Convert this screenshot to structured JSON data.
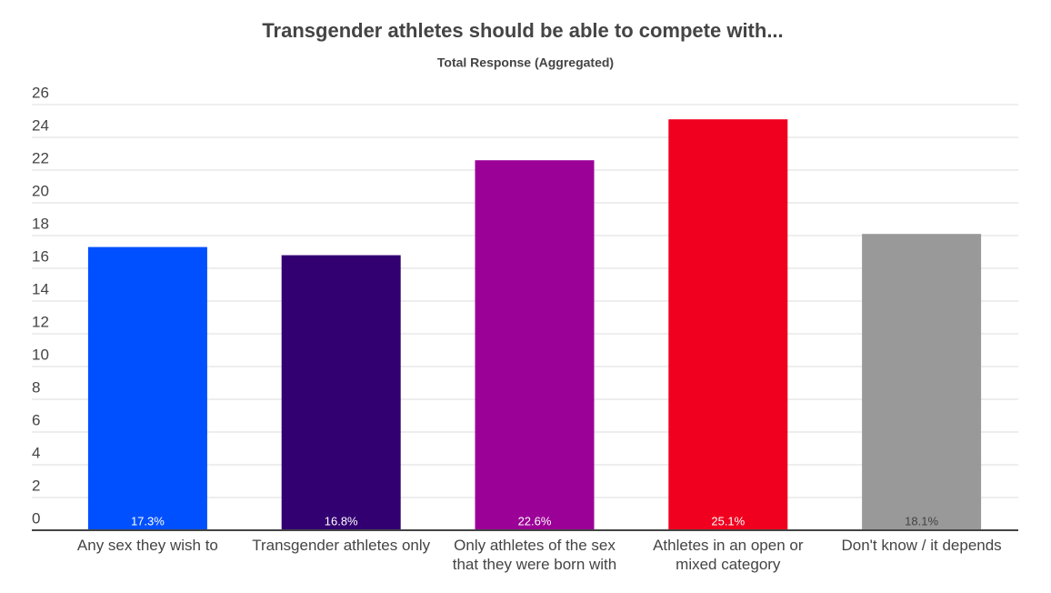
{
  "chart_data": {
    "type": "bar",
    "title": "Transgender athletes should be able to compete with...",
    "subtitle": "Total Response (Aggregated)",
    "categories": [
      "Any sex they wish to",
      "Transgender athletes only",
      "Only athletes of the sex\nthat they were born with",
      "Athletes in an open or\nmixed category",
      "Don't know / it depends"
    ],
    "values": [
      17.3,
      16.8,
      22.6,
      25.1,
      18.1
    ],
    "value_labels": [
      "17.3%",
      "16.8%",
      "22.6%",
      "25.1%",
      "18.1%"
    ],
    "colors": [
      "#0050ff",
      "#330072",
      "#9b0097",
      "#f0001e",
      "#999999"
    ],
    "ylim": [
      0,
      26
    ],
    "yticks": [
      0,
      2,
      4,
      6,
      8,
      10,
      12,
      14,
      16,
      18,
      20,
      22,
      24,
      26
    ],
    "grid": true
  }
}
